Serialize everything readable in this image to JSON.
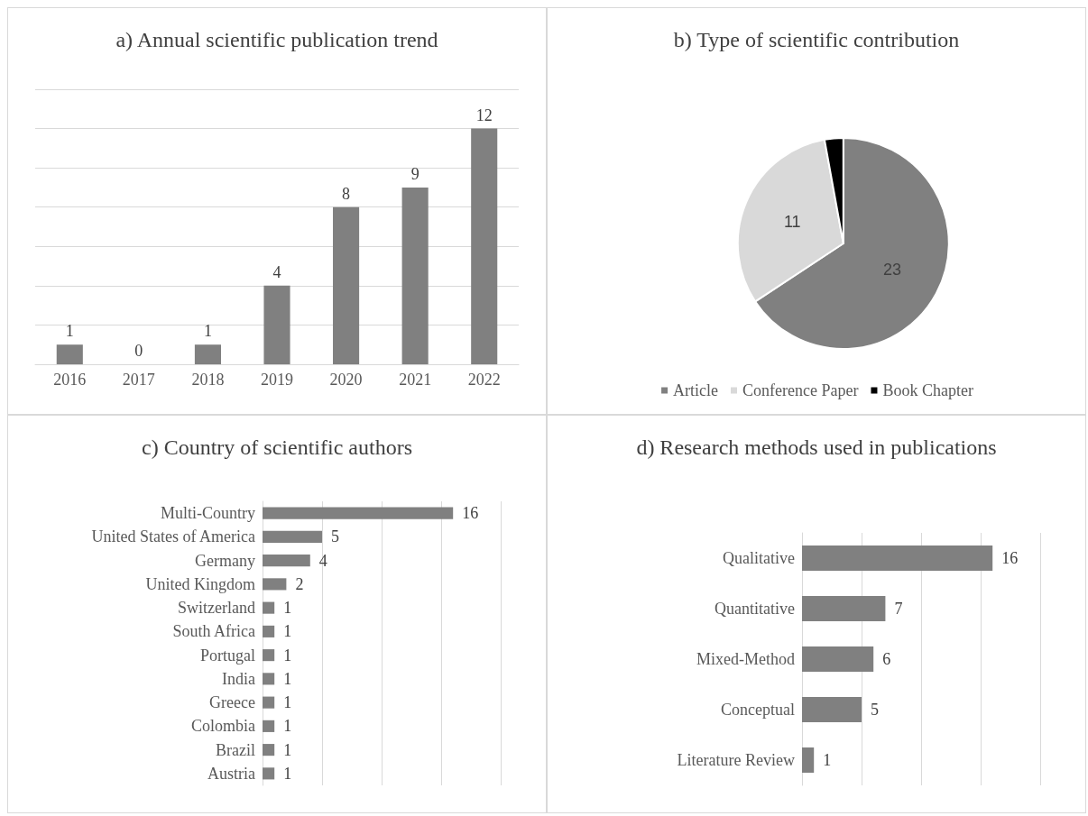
{
  "chart_data": [
    {
      "type": "bar",
      "title": "a) Annual scientific publication trend",
      "categories": [
        "2016",
        "2017",
        "2018",
        "2019",
        "2020",
        "2021",
        "2022"
      ],
      "values": [
        1,
        0,
        1,
        4,
        8,
        9,
        12
      ],
      "color": "#808080",
      "ylim": [
        0,
        14
      ],
      "yticks": [
        {
          "value": 0,
          "label": null
        },
        {
          "value": 2,
          "label": null
        },
        {
          "value": 4,
          "label": null
        },
        {
          "value": 6,
          "label": null
        },
        {
          "value": 8,
          "label": null
        },
        {
          "value": 10,
          "label": null
        },
        {
          "value": 12,
          "label": null
        },
        {
          "value": 14,
          "label": null
        }
      ],
      "grid": "y",
      "tick_labels": "x",
      "data_labels": true
    },
    {
      "type": "pie",
      "title": "b) Type of scientific contribution",
      "categories": [
        "Article",
        "Conference Paper",
        "Book Chapter"
      ],
      "values": [
        23,
        11,
        1
      ],
      "colors": [
        "#808080",
        "#d9d9d9",
        "#000000"
      ],
      "value_labels": [
        "23",
        "11",
        null
      ],
      "legend": "bottom"
    },
    {
      "type": "bar",
      "orientation": "horizontal",
      "title": "c) Country of scientific authors",
      "categories": [
        "Multi-Country",
        "United States of America",
        "Germany",
        "United Kingdom",
        "Switzerland",
        "South Africa",
        "Portugal",
        "India",
        "Greece",
        "Colombia",
        "Brazil",
        "Austria"
      ],
      "values": [
        16,
        5,
        4,
        2,
        1,
        1,
        1,
        1,
        1,
        1,
        1,
        1
      ],
      "color": "#808080",
      "xlim": [
        0,
        20
      ],
      "xticks": [
        {
          "value": 0,
          "label": null
        },
        {
          "value": 5,
          "label": null
        },
        {
          "value": 10,
          "label": null
        },
        {
          "value": 15,
          "label": null
        },
        {
          "value": 20,
          "label": null
        }
      ],
      "grid": "x",
      "tick_labels": "y",
      "data_labels": true
    },
    {
      "type": "bar",
      "orientation": "horizontal",
      "title": "d) Research methods used in publications",
      "categories": [
        "Qualitative",
        "Quantitative",
        "Mixed-Method",
        "Conceptual",
        "Literature Review"
      ],
      "values": [
        16,
        7,
        6,
        5,
        1
      ],
      "color": "#808080",
      "xlim": [
        0,
        20
      ],
      "xticks": [
        {
          "value": 0,
          "label": null
        },
        {
          "value": 5,
          "label": null
        },
        {
          "value": 10,
          "label": null
        },
        {
          "value": 15,
          "label": null
        },
        {
          "value": 20,
          "label": null
        }
      ],
      "grid": "x",
      "tick_labels": "y",
      "data_labels": true
    }
  ]
}
